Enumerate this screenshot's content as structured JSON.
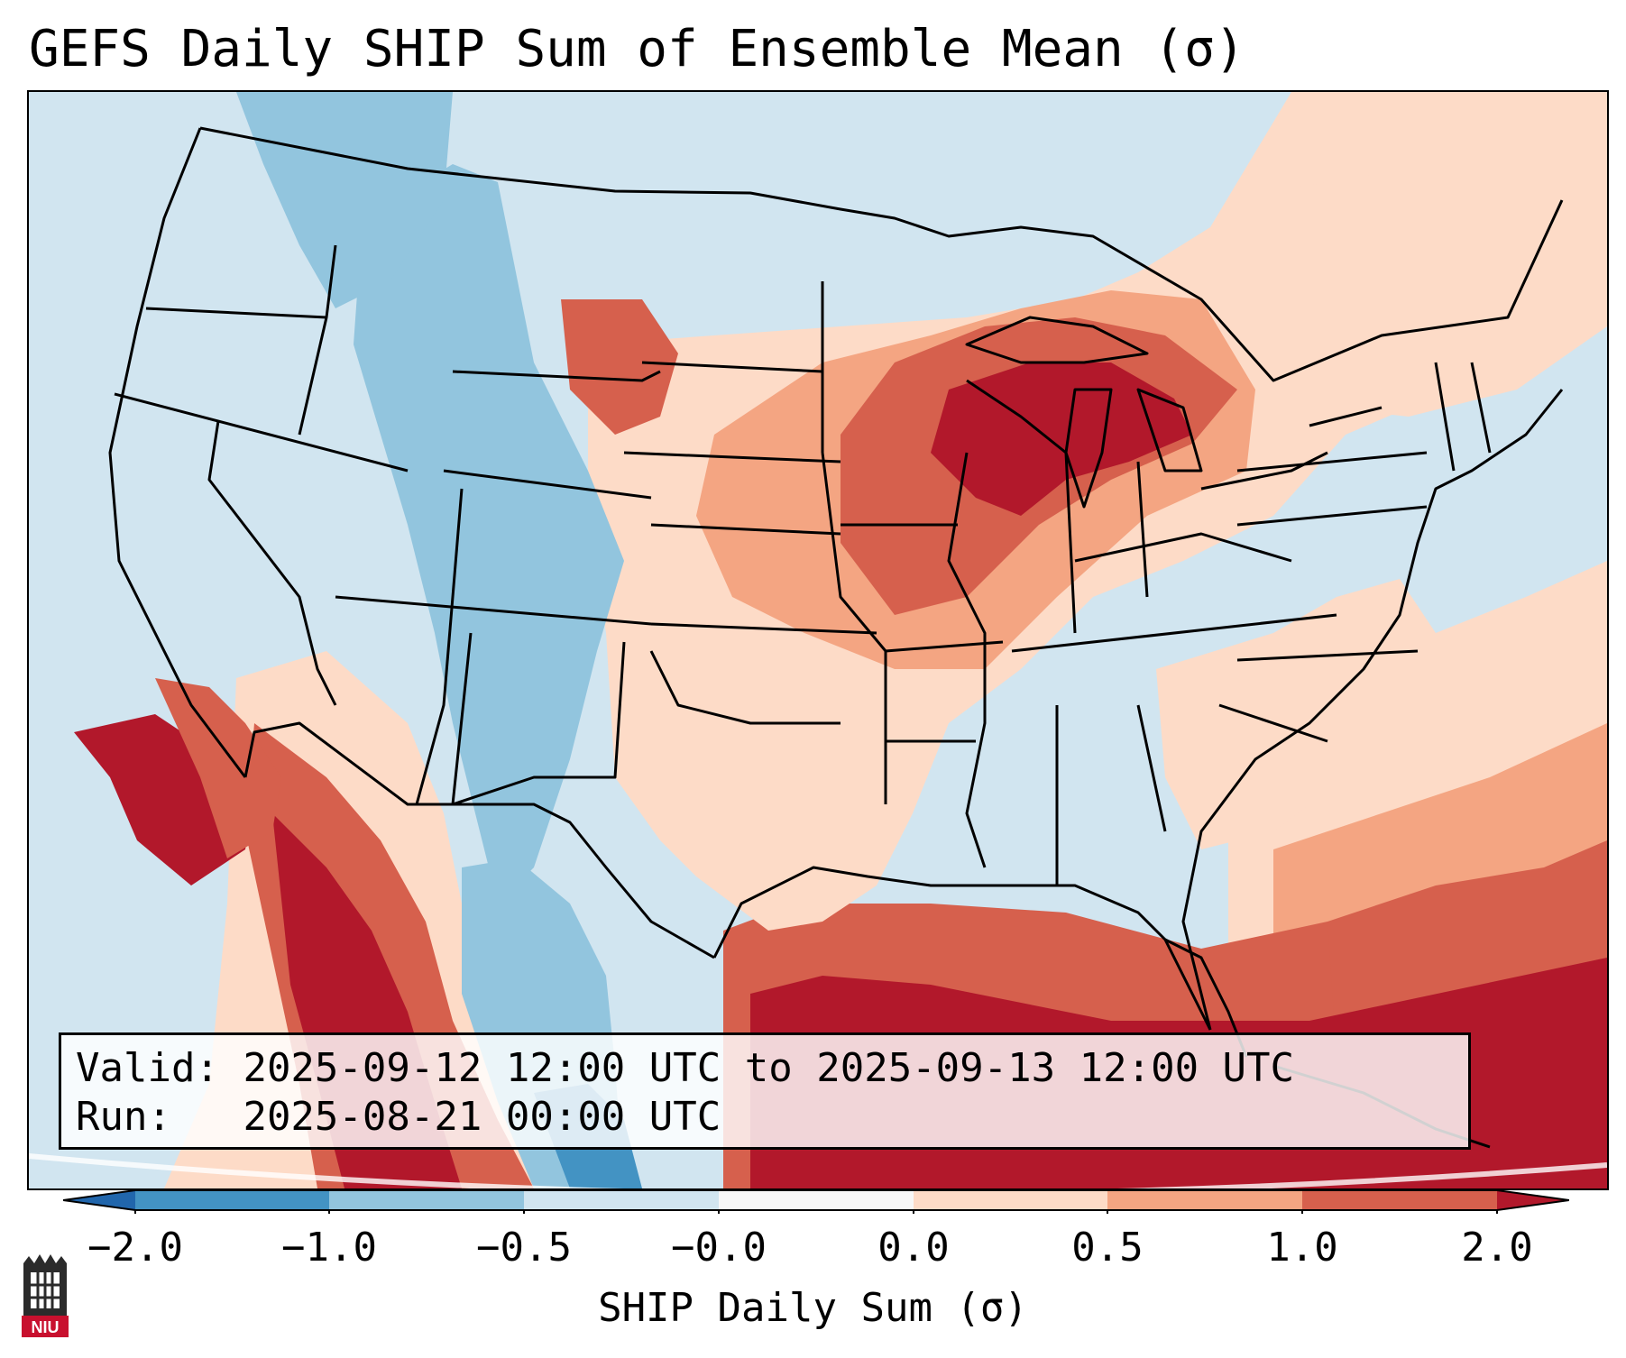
{
  "title": "GEFS Daily SHIP Sum of Ensemble Mean (σ)",
  "info": {
    "valid_label": "Valid:",
    "valid_text": "2025-09-12 12:00 UTC to 2025-09-13 12:00 UTC",
    "run_label": "Run:",
    "run_text": "2025-08-21 00:00 UTC"
  },
  "colorbar": {
    "label": "SHIP Daily Sum (σ)",
    "ticks": [
      "−2.0",
      "−1.0",
      "−0.5",
      "−0.0",
      "0.0",
      "0.5",
      "1.0",
      "2.0"
    ],
    "bins": [
      {
        "range": "< -2.0",
        "color": "#2166ac"
      },
      {
        "range": "-2.0 to -1.0",
        "color": "#4393c3"
      },
      {
        "range": "-1.0 to -0.5",
        "color": "#92c5de"
      },
      {
        "range": "-0.5 to -0.0",
        "color": "#d1e5f0"
      },
      {
        "range": "-0.0 to 0.0",
        "color": "#f7f7f7"
      },
      {
        "range": "0.0 to 0.5",
        "color": "#fddbc7"
      },
      {
        "range": "0.5 to 1.0",
        "color": "#f4a582"
      },
      {
        "range": "1.0 to 2.0",
        "color": "#d6604d"
      },
      {
        "range": "> 2.0",
        "color": "#b2182b"
      }
    ]
  },
  "map": {
    "region": "Contiguous United States",
    "features": [
      "state-borders",
      "coastlines",
      "country-borders"
    ],
    "background_color": "#d1e5f0"
  },
  "logo": {
    "text": "NIU",
    "icon": "niu-tower-logo-icon"
  }
}
